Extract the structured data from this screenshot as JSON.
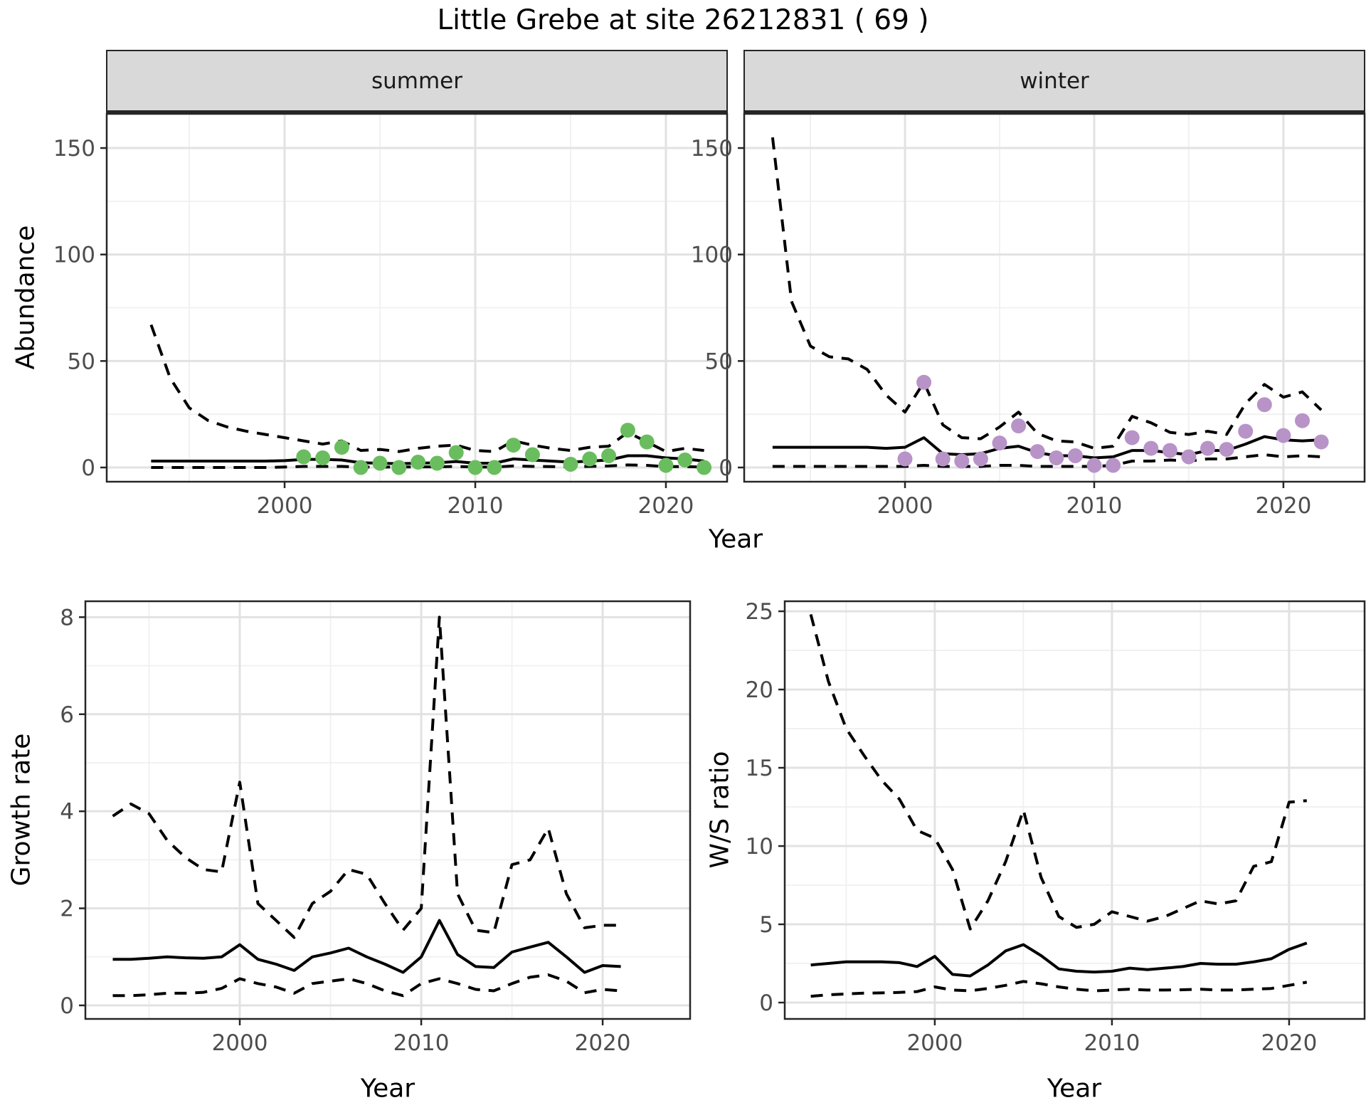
{
  "title": "Little Grebe at site 26212831 ( 69 )",
  "axis_titles": {
    "abundance": "Abundance",
    "year_top": "Year",
    "growth": "Growth rate",
    "year_growth": "Year",
    "ws": "W/S ratio",
    "year_ws": "Year"
  },
  "colors": {
    "summer_point": "#6abd5e",
    "winter_point": "#b893c7",
    "line": "#000000",
    "grid_major": "#e2e2e2",
    "grid_minor": "#f0f0f0",
    "panel_border": "#262626",
    "tick_mark": "#262626",
    "tick_label": "#4d4d4d",
    "strip_bg": "#d9d9d9"
  },
  "chart_data": {
    "summer": {
      "type": "line",
      "facet": "summer",
      "ylabel": "Abundance",
      "xlabel": "Year",
      "xlim": [
        1990.67,
        2023.21
      ],
      "ylim": [
        -6.68,
        166.05
      ],
      "xticks": {
        "values": [
          2000,
          2010,
          2020
        ],
        "labels": [
          "2000",
          "2010",
          "2020"
        ]
      },
      "xminor": [
        1995,
        2005,
        2015
      ],
      "yticks": {
        "values": [
          0,
          50,
          100,
          150
        ],
        "labels": [
          "0",
          "50",
          "100",
          "150"
        ]
      },
      "yminor": [
        25,
        75,
        125
      ],
      "line_years": [
        1993,
        1994,
        1995,
        1996,
        1997,
        1998,
        1999,
        2000,
        2001,
        2002,
        2003,
        2004,
        2005,
        2006,
        2007,
        2008,
        2009,
        2010,
        2011,
        2012,
        2013,
        2014,
        2015,
        2016,
        2017,
        2018,
        2019,
        2020,
        2021,
        2022
      ],
      "upper_ci": [
        67,
        42,
        28,
        22,
        19,
        17,
        15.5,
        14,
        12.5,
        11,
        12.5,
        8,
        8.5,
        7.5,
        9,
        10,
        10.5,
        8,
        7.5,
        12.5,
        10.5,
        9,
        8,
        9.5,
        10,
        16.5,
        12,
        7.5,
        9,
        8
      ],
      "median": [
        3,
        3,
        3,
        3,
        3,
        3,
        3,
        3.2,
        3.8,
        3.8,
        3.5,
        2.2,
        2,
        1.8,
        2,
        2.2,
        2.8,
        2,
        2,
        4,
        3.5,
        3,
        2.5,
        3,
        3.5,
        5.5,
        5.5,
        4.5,
        4,
        3
      ],
      "lower_ci": [
        0,
        0,
        0,
        0,
        0,
        0,
        0,
        0.2,
        0.5,
        0.5,
        0.5,
        0.2,
        0.2,
        0.2,
        0.3,
        0.3,
        0.5,
        0.2,
        0.2,
        0.7,
        0.5,
        0.4,
        0.3,
        0.5,
        0.7,
        1.2,
        1,
        0.4,
        0.4,
        0.2
      ],
      "points": {
        "years": [
          2001,
          2002,
          2003,
          2004,
          2005,
          2006,
          2007,
          2008,
          2009,
          2010,
          2011,
          2012,
          2013,
          2015,
          2016,
          2017,
          2018,
          2019,
          2020,
          2021,
          2022
        ],
        "values": [
          5,
          4.5,
          9.5,
          0,
          2,
          0,
          2.5,
          2,
          7,
          0,
          0,
          10.5,
          6,
          1.5,
          4,
          5.5,
          17.5,
          12,
          1,
          3.5,
          0
        ]
      }
    },
    "winter": {
      "type": "line",
      "facet": "winter",
      "ylabel": "Abundance",
      "xlabel": "Year",
      "xlim": [
        1991.5,
        2024.29
      ],
      "ylim": [
        -6.68,
        166.05
      ],
      "xticks": {
        "values": [
          2000,
          2010,
          2020
        ],
        "labels": [
          "2000",
          "2010",
          "2020"
        ]
      },
      "xminor": [
        1995,
        2005,
        2015
      ],
      "yticks": {
        "values": [
          0,
          50,
          100,
          150
        ],
        "labels": [
          "0",
          "50",
          "100",
          "150"
        ]
      },
      "yminor": [
        25,
        75,
        125
      ],
      "line_years": [
        1993,
        1994,
        1995,
        1996,
        1997,
        1998,
        1999,
        2000,
        2001,
        2002,
        2003,
        2004,
        2005,
        2006,
        2007,
        2008,
        2009,
        2010,
        2011,
        2012,
        2013,
        2014,
        2015,
        2016,
        2017,
        2018,
        2019,
        2020,
        2021,
        2022
      ],
      "upper_ci": [
        155,
        78,
        57,
        52,
        51,
        46,
        34,
        26,
        40,
        20,
        14,
        13.5,
        19,
        26,
        16,
        12.5,
        12,
        9,
        10,
        24,
        21,
        16.5,
        15.5,
        17,
        15.5,
        30,
        39,
        33,
        35.5,
        27
      ],
      "median": [
        9.5,
        9.5,
        9.5,
        9.5,
        9.5,
        9.5,
        9,
        9.5,
        14,
        6.5,
        6,
        6.5,
        9,
        10,
        7,
        5.5,
        5.5,
        4.5,
        5,
        8,
        8,
        7,
        6,
        8,
        8,
        11,
        14.5,
        13,
        12.5,
        13
      ],
      "lower_ci": [
        0.5,
        0.5,
        0.5,
        0.5,
        0.5,
        0.5,
        0.5,
        0.5,
        1,
        0.5,
        0.5,
        0.5,
        1,
        1,
        0.5,
        0.5,
        0.5,
        0.5,
        1,
        3,
        3,
        3.5,
        3,
        4,
        4,
        5,
        6,
        5,
        5.5,
        5
      ],
      "points": {
        "years": [
          2000,
          2001,
          2002,
          2003,
          2004,
          2005,
          2006,
          2007,
          2008,
          2009,
          2010,
          2011,
          2012,
          2013,
          2014,
          2015,
          2016,
          2017,
          2018,
          2019,
          2020,
          2021,
          2022
        ],
        "values": [
          4,
          40,
          4,
          3,
          4,
          11.5,
          19.5,
          7.5,
          4.5,
          5.5,
          1,
          1,
          14,
          9,
          8,
          5,
          9,
          8.5,
          17,
          29.5,
          15,
          22,
          12
        ]
      }
    },
    "growth": {
      "type": "line",
      "facet": "",
      "ylabel": "Growth rate",
      "xlabel": "Year",
      "xlim": [
        1991.49,
        2024.82
      ],
      "ylim": [
        -0.279,
        8.328
      ],
      "xticks": {
        "values": [
          2000,
          2010,
          2020
        ],
        "labels": [
          "2000",
          "2010",
          "2020"
        ]
      },
      "xminor": [
        1995,
        2005,
        2015
      ],
      "yticks": {
        "values": [
          0,
          2,
          4,
          6,
          8
        ],
        "labels": [
          "0",
          "2",
          "4",
          "6",
          "8"
        ]
      },
      "yminor": [
        1,
        3,
        5,
        7
      ],
      "line_years": [
        1993,
        1994,
        1995,
        1996,
        1997,
        1998,
        1999,
        2000,
        2001,
        2002,
        2003,
        2004,
        2005,
        2006,
        2007,
        2008,
        2009,
        2010,
        2011,
        2012,
        2013,
        2014,
        2015,
        2016,
        2017,
        2018,
        2019,
        2020,
        2021
      ],
      "upper_ci": [
        3.9,
        4.15,
        3.95,
        3.4,
        3.05,
        2.8,
        2.75,
        4.6,
        2.1,
        1.75,
        1.4,
        2.1,
        2.35,
        2.8,
        2.7,
        2.1,
        1.55,
        2.0,
        8.0,
        2.3,
        1.55,
        1.5,
        2.9,
        3.0,
        3.65,
        2.3,
        1.6,
        1.65,
        1.65
      ],
      "median": [
        0.95,
        0.95,
        0.97,
        1.0,
        0.98,
        0.97,
        1.0,
        1.25,
        0.95,
        0.85,
        0.72,
        1.0,
        1.08,
        1.18,
        1.0,
        0.85,
        0.68,
        1.0,
        1.75,
        1.05,
        0.8,
        0.78,
        1.1,
        1.2,
        1.3,
        1.0,
        0.68,
        0.82,
        0.8
      ],
      "lower_ci": [
        0.2,
        0.2,
        0.22,
        0.25,
        0.25,
        0.27,
        0.35,
        0.55,
        0.45,
        0.38,
        0.25,
        0.45,
        0.5,
        0.55,
        0.45,
        0.3,
        0.2,
        0.45,
        0.55,
        0.45,
        0.33,
        0.3,
        0.45,
        0.58,
        0.63,
        0.5,
        0.26,
        0.33,
        0.3
      ],
      "points": {
        "years": [],
        "values": []
      }
    },
    "ws": {
      "type": "line",
      "facet": "",
      "ylabel": "W/S ratio",
      "xlabel": "Year",
      "xlim": [
        1991.53,
        2024.26
      ],
      "ylim": [
        -1.045,
        25.64
      ],
      "xticks": {
        "values": [
          2000,
          2010,
          2020
        ],
        "labels": [
          "2000",
          "2010",
          "2020"
        ]
      },
      "xminor": [
        1995,
        2005,
        2015
      ],
      "yticks": {
        "values": [
          0,
          5,
          10,
          15,
          20,
          25
        ],
        "labels": [
          "0",
          "5",
          "10",
          "15",
          "20",
          "25"
        ]
      },
      "yminor": [
        2.5,
        7.5,
        12.5,
        17.5,
        22.5
      ],
      "line_years": [
        1993,
        1994,
        1995,
        1996,
        1997,
        1998,
        1999,
        2000,
        2001,
        2002,
        2003,
        2004,
        2005,
        2006,
        2007,
        2008,
        2009,
        2010,
        2011,
        2012,
        2013,
        2014,
        2015,
        2016,
        2017,
        2018,
        2019,
        2020,
        2021
      ],
      "upper_ci": [
        24.8,
        20.5,
        17.5,
        15.8,
        14.2,
        13,
        11,
        10.5,
        8.5,
        4.7,
        6.5,
        9.0,
        12.3,
        8,
        5.5,
        4.8,
        5,
        5.8,
        5.5,
        5.2,
        5.5,
        6,
        6.5,
        6.3,
        6.5,
        8.7,
        9,
        12.8,
        12.9
      ],
      "median": [
        2.4,
        2.5,
        2.6,
        2.6,
        2.6,
        2.55,
        2.3,
        2.95,
        1.8,
        1.7,
        2.4,
        3.3,
        3.7,
        3.0,
        2.15,
        2.0,
        1.95,
        2.0,
        2.2,
        2.1,
        2.2,
        2.3,
        2.5,
        2.45,
        2.45,
        2.6,
        2.8,
        3.4,
        3.8
      ],
      "lower_ci": [
        0.4,
        0.5,
        0.55,
        0.6,
        0.62,
        0.65,
        0.7,
        1.0,
        0.8,
        0.75,
        0.9,
        1.1,
        1.35,
        1.2,
        1.0,
        0.85,
        0.75,
        0.8,
        0.85,
        0.8,
        0.8,
        0.82,
        0.85,
        0.8,
        0.8,
        0.85,
        0.9,
        1.1,
        1.3
      ],
      "points": {
        "years": [],
        "values": []
      }
    }
  }
}
